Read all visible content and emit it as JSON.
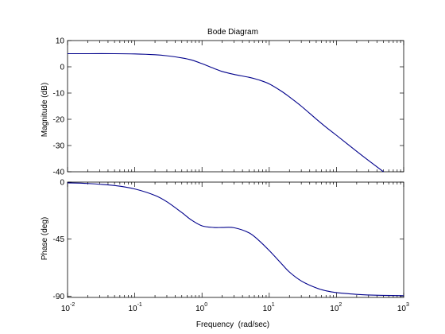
{
  "chart_data": [
    {
      "type": "line",
      "title": "Bode Diagram",
      "xlabel": "",
      "ylabel": "Magnitude (dB)",
      "xscale": "log",
      "xlim": [
        0.01,
        1000
      ],
      "ylim": [
        -40,
        10
      ],
      "yticks": [
        10,
        0,
        -10,
        -20,
        -30,
        -40
      ],
      "ytick_labels": [
        "10",
        "0",
        "-10",
        "-20",
        "-30",
        "-40"
      ],
      "grid": false,
      "series": [
        {
          "color": "#00008b",
          "x": [
            0.01,
            0.02,
            0.05,
            0.1,
            0.2,
            0.3,
            0.5,
            0.7,
            1,
            1.5,
            2,
            3,
            5,
            7,
            10,
            15,
            20,
            30,
            50,
            70,
            100,
            200,
            300,
            500,
            650
          ],
          "y": [
            5.0,
            5.0,
            5.0,
            4.9,
            4.6,
            4.2,
            3.4,
            2.6,
            1.2,
            -0.6,
            -1.8,
            -2.9,
            -4.0,
            -5.0,
            -6.5,
            -9.2,
            -11.5,
            -15.0,
            -19.9,
            -23.0,
            -26.1,
            -32.2,
            -35.7,
            -40.0,
            -42.3
          ]
        }
      ]
    },
    {
      "type": "line",
      "title": "",
      "xlabel": "Frequency  (rad/sec)",
      "ylabel": "Phase (deg)",
      "xscale": "log",
      "xlim": [
        0.01,
        1000
      ],
      "ylim": [
        -91,
        0
      ],
      "yticks": [
        0,
        -45,
        -90
      ],
      "ytick_labels": [
        "0",
        "-45",
        "-90"
      ],
      "xticks": [
        0.01,
        0.1,
        1,
        10,
        100,
        1000
      ],
      "xtick_labels": [
        {
          "base": "10",
          "exp": "-2"
        },
        {
          "base": "10",
          "exp": "-1"
        },
        {
          "base": "10",
          "exp": "0"
        },
        {
          "base": "10",
          "exp": "1"
        },
        {
          "base": "10",
          "exp": "2"
        },
        {
          "base": "10",
          "exp": "3"
        }
      ],
      "grid": false,
      "series": [
        {
          "color": "#00008b",
          "x": [
            0.01,
            0.02,
            0.05,
            0.1,
            0.2,
            0.3,
            0.5,
            0.7,
            1,
            1.5,
            2,
            3,
            5,
            7,
            10,
            15,
            20,
            30,
            50,
            70,
            100,
            200,
            300,
            500,
            1000
          ],
          "y": [
            -0.6,
            -1.1,
            -2.7,
            -5.4,
            -10.5,
            -15.5,
            -24.0,
            -30.0,
            -34.5,
            -35.8,
            -35.8,
            -36.0,
            -40.0,
            -46.0,
            -54.0,
            -64.0,
            -71.0,
            -78.0,
            -83.5,
            -85.8,
            -87.2,
            -88.6,
            -89.1,
            -89.4,
            -89.6
          ]
        }
      ]
    }
  ]
}
